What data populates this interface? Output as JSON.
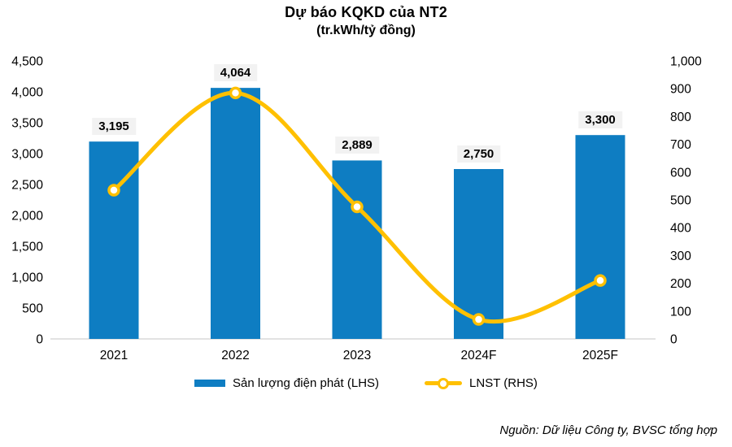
{
  "title": "Dự báo KQKD của NT2",
  "subtitle": "(tr.kWh/tỷ đồng)",
  "source": "Nguồn: Dữ liệu Công ty, BVSC tổng hợp",
  "colors": {
    "bar": "#0E7DC2",
    "line": "#FFC000",
    "marker_fill": "#FFFFFF",
    "label_bg": "#F2F2F2",
    "axis_line": "#D9D9D9",
    "text": "#000000"
  },
  "chart_data": {
    "type": "bar",
    "subtype": "combo bar + smooth line, dual axis",
    "title": "Dự báo KQKD của NT2",
    "subtitle": "(tr.kWh/tỷ đồng)",
    "categories": [
      "2021",
      "2022",
      "2023",
      "2024F",
      "2025F"
    ],
    "series": [
      {
        "name": "Sản lượng điện phát (LHS)",
        "type": "bar",
        "axis": "left",
        "values": [
          3195,
          4064,
          2889,
          2750,
          3300
        ],
        "labels": [
          "3,195",
          "4,064",
          "2,889",
          "2,750",
          "3,300"
        ],
        "color": "#0E7DC2"
      },
      {
        "name": "LNST (RHS)",
        "type": "line",
        "axis": "right",
        "values": [
          535,
          885,
          475,
          70,
          210
        ],
        "color": "#FFC000"
      }
    ],
    "left_axis": {
      "min": 0,
      "max": 4500,
      "step": 500,
      "ticks": [
        "0",
        "500",
        "1,000",
        "1,500",
        "2,000",
        "2,500",
        "3,000",
        "3,500",
        "4,000",
        "4,500"
      ]
    },
    "right_axis": {
      "min": 0,
      "max": 1000,
      "step": 100,
      "ticks": [
        "0",
        "100",
        "200",
        "300",
        "400",
        "500",
        "600",
        "700",
        "800",
        "900",
        "1,000"
      ]
    },
    "grid": false,
    "legend_position": "bottom"
  },
  "legend": {
    "items": [
      {
        "label": "Sản lượng điện phát (LHS)",
        "swatch": "bar"
      },
      {
        "label": "LNST (RHS)",
        "swatch": "line"
      }
    ]
  }
}
